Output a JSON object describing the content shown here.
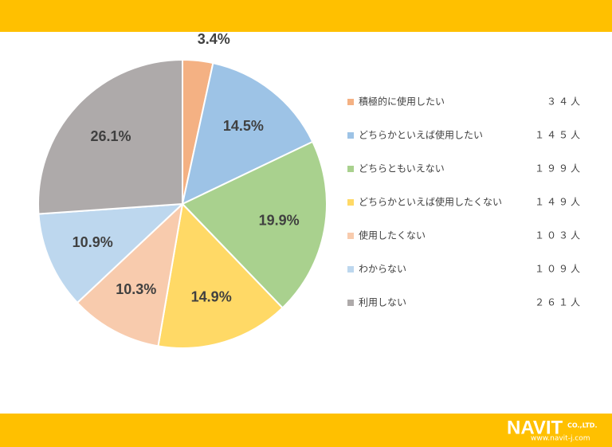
{
  "chart_data": {
    "type": "pie",
    "categories": [
      "積極的に使用したい",
      "どちらかといえば使用したい",
      "どちらともいえない",
      "どちらかといえば使用したくない",
      "使用したくない",
      "わからない",
      "利用しない"
    ],
    "values": [
      3.4,
      14.5,
      19.9,
      14.9,
      10.3,
      10.9,
      26.1
    ],
    "value_labels": [
      "3.4%",
      "14.5%",
      "19.9%",
      "14.9%",
      "10.3%",
      "10.9%",
      "26.1%"
    ],
    "counts": [
      "３４人",
      "１４５人",
      "１９９人",
      "１４９人",
      "１０３人",
      "１０９人",
      "２６１人"
    ],
    "colors": [
      "#f4b183",
      "#9dc3e6",
      "#a9d18e",
      "#ffd966",
      "#f8cbad",
      "#bdd7ee",
      "#aeaaaa"
    ],
    "legend": "right"
  },
  "footer": {
    "logo": "NAVIT",
    "company": "CO.,LTD.",
    "url": "www.navit-j.com"
  }
}
